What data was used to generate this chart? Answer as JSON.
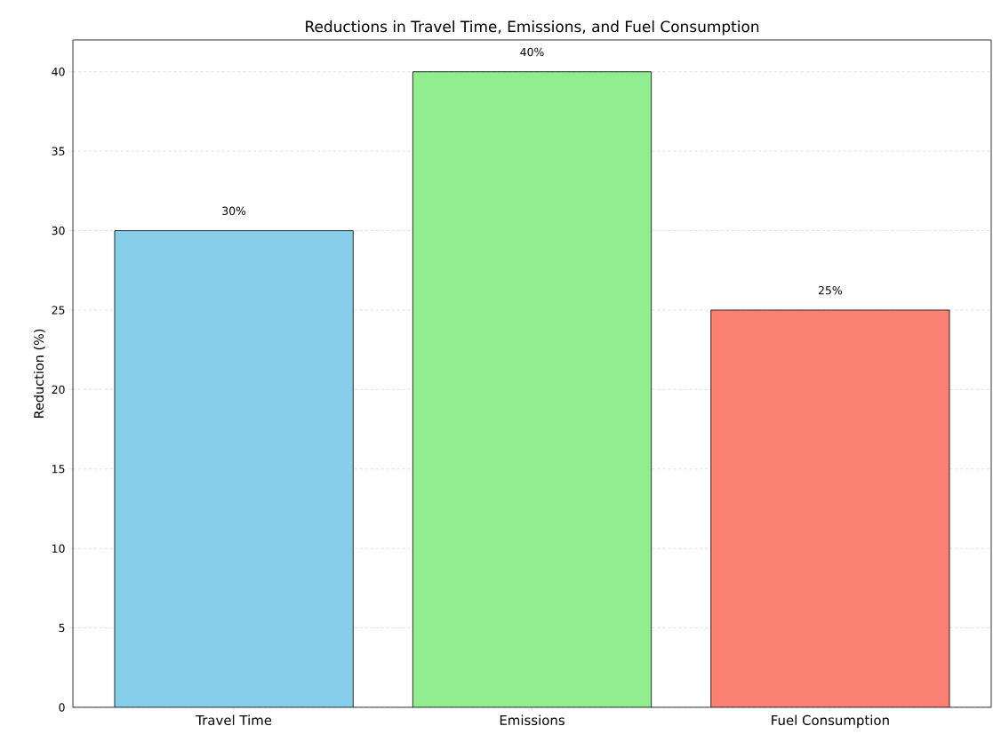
{
  "chart_data": {
    "type": "bar",
    "title": "Reductions in Travel Time, Emissions, and Fuel Consumption",
    "ylabel": "Reduction (%)",
    "categories": [
      "Travel Time",
      "Emissions",
      "Fuel Consumption"
    ],
    "values": [
      30,
      40,
      25
    ],
    "colors": [
      "#87ceeb",
      "#90ee90",
      "#fa8072"
    ],
    "value_labels": [
      "30%",
      "40%",
      "25%"
    ],
    "ylim": [
      0,
      42
    ],
    "yticks": [
      0,
      5,
      10,
      15,
      20,
      25,
      30,
      35,
      40
    ],
    "grid": "y"
  }
}
